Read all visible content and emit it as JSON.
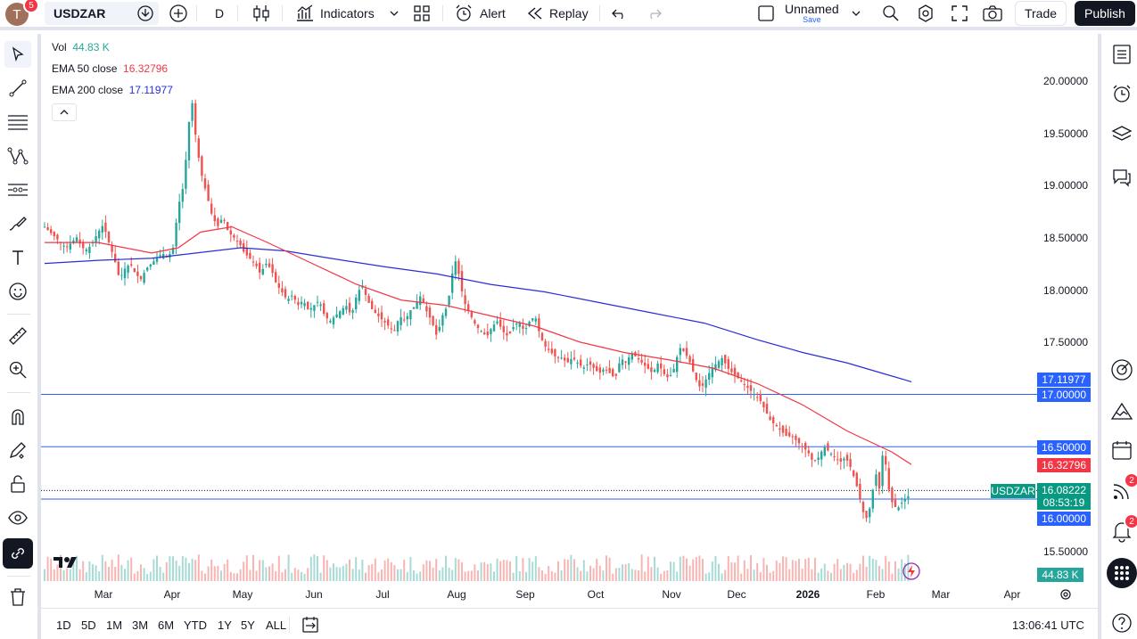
{
  "header": {
    "avatar_letter": "T",
    "notifications_count": "5",
    "symbol": "USDZAR",
    "interval": "D",
    "indicators_label": "Indicators",
    "alert_label": "Alert",
    "replay_label": "Replay",
    "layout_name": "Unnamed",
    "layout_save": "Save",
    "trade_label": "Trade",
    "publish_label": "Publish"
  },
  "legend": {
    "vol_label": "Vol",
    "vol_value": "44.83 K",
    "ema50_label": "EMA 50 close",
    "ema50_value": "16.32796",
    "ema200_label": "EMA 200 close",
    "ema200_value": "17.11977"
  },
  "price_axis": {
    "ticks": [
      "20.00000",
      "19.50000",
      "19.00000",
      "18.50000",
      "18.00000",
      "17.50000",
      "15.50000"
    ],
    "labels": {
      "ema200": "17.11977",
      "line_17": "17.00000",
      "line_165": "16.50000",
      "ema50": "16.32796",
      "symbol_tag": "USDZAR",
      "last_price": "16.08222",
      "countdown": "08:53:19",
      "line_16": "16.00000",
      "volume": "44.83 K"
    }
  },
  "time_axis": {
    "months": [
      "Mar",
      "Apr",
      "May",
      "Jun",
      "Jul",
      "Aug",
      "Sep",
      "Oct",
      "Nov",
      "Dec",
      "2026",
      "Feb",
      "Mar",
      "Apr"
    ]
  },
  "bottom": {
    "ranges": [
      "1D",
      "5D",
      "1M",
      "3M",
      "6M",
      "YTD",
      "1Y",
      "5Y",
      "ALL"
    ],
    "clock": "13:06:41 UTC"
  },
  "right_toolbar": {
    "ideas_badge": "2",
    "alerts_badge": "2"
  },
  "colors": {
    "up": "#26a69a",
    "down": "#ef5350",
    "ema50": "#f23645",
    "ema200": "#2a2ed6",
    "hline": "#2962ff",
    "accent": "#131722"
  },
  "chart_data": {
    "type": "candlestick",
    "symbol": "USDZAR",
    "interval": "D",
    "y_range": [
      15.3,
      20.2
    ],
    "horizontal_lines": [
      17.0,
      16.5,
      16.0
    ],
    "x_months": [
      "Mar",
      "Apr",
      "May",
      "Jun",
      "Jul",
      "Aug",
      "Sep",
      "Oct",
      "Nov",
      "Dec",
      "2026",
      "Feb",
      "Mar",
      "Apr"
    ],
    "close_path": [
      [
        0,
        18.6
      ],
      [
        6,
        18.55
      ],
      [
        12,
        18.5
      ],
      [
        18,
        18.45
      ],
      [
        24,
        18.4
      ],
      [
        30,
        18.45
      ],
      [
        36,
        18.5
      ],
      [
        42,
        18.4
      ],
      [
        48,
        18.38
      ],
      [
        54,
        18.45
      ],
      [
        60,
        18.55
      ],
      [
        66,
        18.62
      ],
      [
        72,
        18.45
      ],
      [
        78,
        18.3
      ],
      [
        84,
        18.1
      ],
      [
        90,
        18.2
      ],
      [
        96,
        18.25
      ],
      [
        102,
        18.15
      ],
      [
        108,
        18.1
      ],
      [
        114,
        18.2
      ],
      [
        120,
        18.25
      ],
      [
        126,
        18.3
      ],
      [
        132,
        18.35
      ],
      [
        138,
        18.3
      ],
      [
        144,
        18.4
      ],
      [
        150,
        18.8
      ],
      [
        156,
        19.0
      ],
      [
        162,
        19.6
      ],
      [
        166,
        19.8
      ],
      [
        170,
        19.4
      ],
      [
        176,
        19.1
      ],
      [
        182,
        18.9
      ],
      [
        188,
        18.7
      ],
      [
        194,
        18.6
      ],
      [
        200,
        18.7
      ],
      [
        206,
        18.55
      ],
      [
        212,
        18.5
      ],
      [
        218,
        18.45
      ],
      [
        224,
        18.35
      ],
      [
        230,
        18.3
      ],
      [
        236,
        18.25
      ],
      [
        242,
        18.15
      ],
      [
        248,
        18.25
      ],
      [
        254,
        18.2
      ],
      [
        260,
        18.05
      ],
      [
        266,
        17.98
      ],
      [
        272,
        17.9
      ],
      [
        278,
        17.95
      ],
      [
        284,
        17.85
      ],
      [
        290,
        17.9
      ],
      [
        296,
        17.8
      ],
      [
        302,
        17.85
      ],
      [
        308,
        17.9
      ],
      [
        314,
        17.75
      ],
      [
        320,
        17.7
      ],
      [
        326,
        17.75
      ],
      [
        332,
        17.8
      ],
      [
        338,
        17.85
      ],
      [
        344,
        17.75
      ],
      [
        350,
        17.95
      ],
      [
        356,
        18.05
      ],
      [
        362,
        17.9
      ],
      [
        368,
        17.8
      ],
      [
        374,
        17.75
      ],
      [
        380,
        17.7
      ],
      [
        386,
        17.65
      ],
      [
        392,
        17.6
      ],
      [
        398,
        17.75
      ],
      [
        404,
        17.7
      ],
      [
        410,
        17.8
      ],
      [
        416,
        17.85
      ],
      [
        422,
        17.95
      ],
      [
        428,
        17.8
      ],
      [
        434,
        17.7
      ],
      [
        440,
        17.55
      ],
      [
        446,
        17.75
      ],
      [
        452,
        17.85
      ],
      [
        458,
        18.2
      ],
      [
        462,
        18.3
      ],
      [
        466,
        18.05
      ],
      [
        472,
        17.85
      ],
      [
        478,
        17.75
      ],
      [
        484,
        17.65
      ],
      [
        490,
        17.6
      ],
      [
        496,
        17.55
      ],
      [
        502,
        17.65
      ],
      [
        508,
        17.7
      ],
      [
        514,
        17.6
      ],
      [
        520,
        17.55
      ],
      [
        526,
        17.65
      ],
      [
        532,
        17.7
      ],
      [
        538,
        17.6
      ],
      [
        544,
        17.7
      ],
      [
        550,
        17.75
      ],
      [
        556,
        17.55
      ],
      [
        562,
        17.45
      ],
      [
        568,
        17.4
      ],
      [
        574,
        17.35
      ],
      [
        580,
        17.35
      ],
      [
        586,
        17.3
      ],
      [
        592,
        17.35
      ],
      [
        598,
        17.3
      ],
      [
        604,
        17.25
      ],
      [
        610,
        17.3
      ],
      [
        616,
        17.25
      ],
      [
        622,
        17.2
      ],
      [
        628,
        17.25
      ],
      [
        634,
        17.2
      ],
      [
        640,
        17.15
      ],
      [
        646,
        17.35
      ],
      [
        652,
        17.3
      ],
      [
        658,
        17.4
      ],
      [
        664,
        17.35
      ],
      [
        670,
        17.3
      ],
      [
        676,
        17.25
      ],
      [
        682,
        17.2
      ],
      [
        688,
        17.3
      ],
      [
        694,
        17.2
      ],
      [
        700,
        17.15
      ],
      [
        706,
        17.25
      ],
      [
        712,
        17.45
      ],
      [
        718,
        17.4
      ],
      [
        724,
        17.3
      ],
      [
        730,
        17.15
      ],
      [
        736,
        17.05
      ],
      [
        742,
        17.15
      ],
      [
        748,
        17.25
      ],
      [
        754,
        17.3
      ],
      [
        760,
        17.35
      ],
      [
        766,
        17.25
      ],
      [
        772,
        17.2
      ],
      [
        778,
        17.15
      ],
      [
        784,
        17.1
      ],
      [
        790,
        17.05
      ],
      [
        796,
        17.0
      ],
      [
        802,
        16.95
      ],
      [
        808,
        16.85
      ],
      [
        814,
        16.75
      ],
      [
        820,
        16.7
      ],
      [
        826,
        16.65
      ],
      [
        832,
        16.6
      ],
      [
        838,
        16.6
      ],
      [
        844,
        16.55
      ],
      [
        850,
        16.5
      ],
      [
        856,
        16.45
      ],
      [
        862,
        16.35
      ],
      [
        868,
        16.4
      ],
      [
        874,
        16.5
      ],
      [
        880,
        16.45
      ],
      [
        886,
        16.4
      ],
      [
        892,
        16.35
      ],
      [
        898,
        16.4
      ],
      [
        904,
        16.3
      ],
      [
        910,
        16.15
      ],
      [
        916,
        15.95
      ],
      [
        920,
        15.8
      ],
      [
        924,
        15.85
      ],
      [
        928,
        16.05
      ],
      [
        932,
        16.25
      ],
      [
        936,
        16.1
      ],
      [
        940,
        16.45
      ],
      [
        944,
        16.3
      ],
      [
        948,
        16.0
      ],
      [
        952,
        15.95
      ],
      [
        956,
        15.9
      ],
      [
        960,
        15.95
      ],
      [
        964,
        16.0
      ],
      [
        968,
        16.02
      ],
      [
        972,
        16.08
      ]
    ],
    "ema50_path": [
      [
        0,
        18.45
      ],
      [
        60,
        18.45
      ],
      [
        120,
        18.35
      ],
      [
        150,
        18.4
      ],
      [
        175,
        18.55
      ],
      [
        210,
        18.6
      ],
      [
        250,
        18.45
      ],
      [
        300,
        18.25
      ],
      [
        350,
        18.05
      ],
      [
        400,
        17.9
      ],
      [
        450,
        17.85
      ],
      [
        500,
        17.75
      ],
      [
        550,
        17.65
      ],
      [
        600,
        17.5
      ],
      [
        650,
        17.4
      ],
      [
        700,
        17.33
      ],
      [
        750,
        17.25
      ],
      [
        800,
        17.1
      ],
      [
        850,
        16.9
      ],
      [
        900,
        16.65
      ],
      [
        950,
        16.45
      ],
      [
        972,
        16.33
      ]
    ],
    "ema200_path": [
      [
        0,
        18.25
      ],
      [
        60,
        18.28
      ],
      [
        120,
        18.3
      ],
      [
        170,
        18.35
      ],
      [
        220,
        18.4
      ],
      [
        270,
        18.37
      ],
      [
        320,
        18.3
      ],
      [
        380,
        18.22
      ],
      [
        440,
        18.15
      ],
      [
        500,
        18.05
      ],
      [
        560,
        17.98
      ],
      [
        620,
        17.88
      ],
      [
        680,
        17.78
      ],
      [
        740,
        17.68
      ],
      [
        800,
        17.52
      ],
      [
        850,
        17.4
      ],
      [
        900,
        17.3
      ],
      [
        940,
        17.2
      ],
      [
        972,
        17.12
      ]
    ]
  }
}
